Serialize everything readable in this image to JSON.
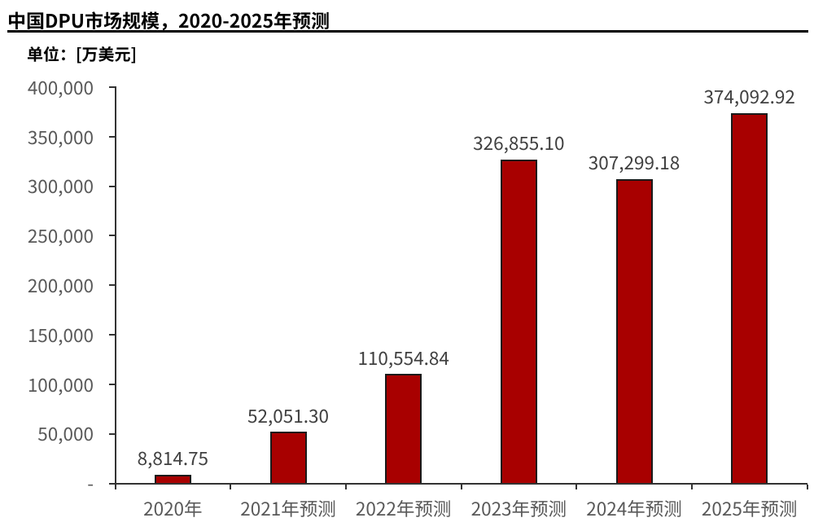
{
  "header": {
    "title": "中国DPU市场规模，2020-2025年预测",
    "unit_label": "单位：[万美元]"
  },
  "chart_data": {
    "type": "bar",
    "title": "中国DPU市场规模，2020-2025年预测",
    "xlabel": "",
    "ylabel": "单位：[万美元]",
    "categories": [
      "2020年",
      "2021年预测",
      "2022年预测",
      "2023年预测",
      "2024年预测",
      "2025年预测"
    ],
    "values": [
      8814.75,
      52051.3,
      110554.84,
      326855.1,
      307299.18,
      374092.92
    ],
    "data_labels": [
      "8,814.75",
      "52,051.30",
      "110,554.84",
      "326,855.10",
      "307,299.18",
      "374,092.92"
    ],
    "ylim": [
      0,
      400000
    ],
    "ytick_interval": 50000,
    "ytick_labels": [
      "-",
      "50,000",
      "100,000",
      "150,000",
      "200,000",
      "250,000",
      "300,000",
      "350,000",
      "400,000"
    ],
    "grid": false,
    "legend": false,
    "colors": {
      "bar_fill": "#a80000",
      "bar_border": "#1a1a1a",
      "axis_line": "#333333",
      "axis_tick_label": "#595959",
      "data_label": "#404040",
      "title_text": "#000000",
      "background": "#ffffff"
    }
  }
}
